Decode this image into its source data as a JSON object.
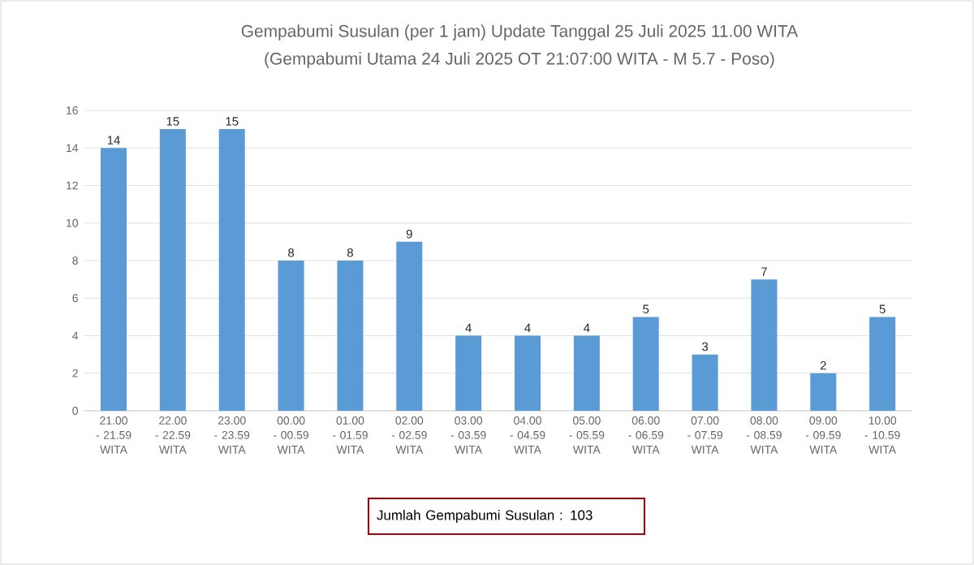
{
  "chart_data": {
    "type": "bar",
    "title": "Gempabumi Susulan (per 1 jam) Update Tanggal 25 Juli 2025 11.00 WITA",
    "subtitle": "(Gempabumi Utama 24 Juli 2025 OT 21:07:00 WITA - M 5.7 - Poso)",
    "categories": [
      "21.00 - 21.59 WITA",
      "22.00 - 22.59 WITA",
      "23.00 - 23.59 WITA",
      "00.00 - 00.59 WITA",
      "01.00 - 01.59 WITA",
      "02.00 - 02.59 WITA",
      "03.00 - 03.59 WITA",
      "04.00 - 04.59 WITA",
      "05.00 - 05.59 WITA",
      "06.00 - 06.59 WITA",
      "07.00 - 07.59 WITA",
      "08.00 - 08.59 WITA",
      "09.00 - 09.59 WITA",
      "10.00 - 10.59 WITA"
    ],
    "values": [
      14,
      15,
      15,
      8,
      8,
      9,
      4,
      4,
      4,
      5,
      3,
      7,
      2,
      5
    ],
    "color": "#5b9bd5",
    "ylim": [
      0,
      16
    ],
    "yticks": [
      0,
      2,
      4,
      6,
      8,
      10,
      12,
      14,
      16
    ],
    "grid": "y",
    "data_labels": true,
    "annotations": [
      "Jumlah Gempabumi Susulan : 103"
    ]
  }
}
